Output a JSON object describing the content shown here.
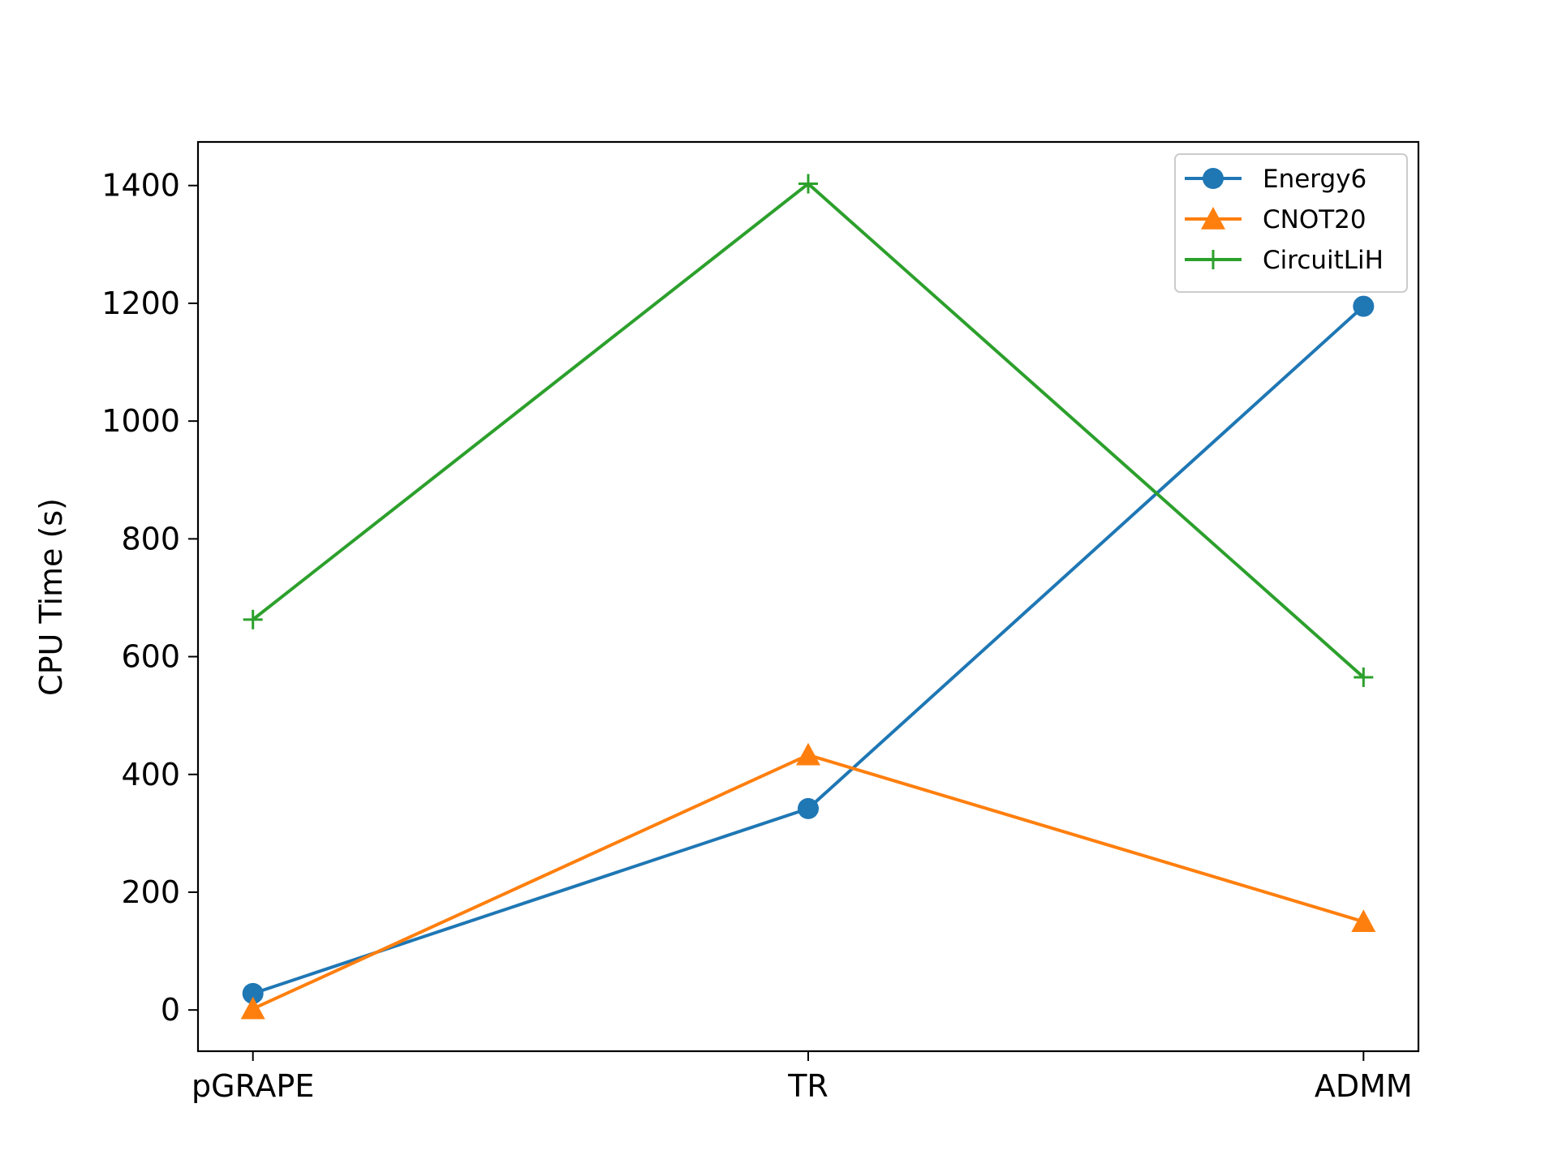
{
  "chart_data": {
    "type": "line",
    "categories": [
      "pGRAPE",
      "TR",
      "ADMM"
    ],
    "series": [
      {
        "name": "Energy6",
        "values": [
          28,
          342,
          1195
        ],
        "color": "#1f77b4",
        "marker": "circle"
      },
      {
        "name": "CNOT20",
        "values": [
          2,
          433,
          150
        ],
        "color": "#ff7f0e",
        "marker": "triangle"
      },
      {
        "name": "CircuitLiH",
        "values": [
          663,
          1403,
          565
        ],
        "color": "#2ca02c",
        "marker": "plus"
      }
    ],
    "title": "",
    "xlabel": "",
    "ylabel": "CPU Time (s)",
    "ylim": [
      -70,
      1474
    ],
    "yticks": [
      0,
      200,
      400,
      600,
      800,
      1000,
      1200,
      1400
    ],
    "grid": false,
    "legend_position": "top-right"
  }
}
